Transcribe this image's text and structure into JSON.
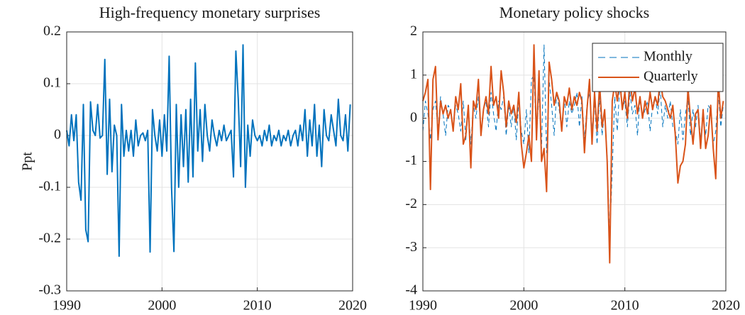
{
  "chart_data": [
    {
      "type": "line",
      "title": "High-frequency monetary surprises",
      "y_label": "Ppt",
      "x": [
        1990,
        1990.25,
        1990.5,
        1990.75,
        1991,
        1991.25,
        1991.5,
        1991.75,
        1992,
        1992.25,
        1992.5,
        1992.75,
        1993,
        1993.25,
        1993.5,
        1993.75,
        1994,
        1994.25,
        1994.5,
        1994.75,
        1995,
        1995.25,
        1995.5,
        1995.75,
        1996,
        1996.25,
        1996.5,
        1996.75,
        1997,
        1997.25,
        1997.5,
        1997.75,
        1998,
        1998.25,
        1998.5,
        1998.75,
        1999,
        1999.25,
        1999.5,
        1999.75,
        2000,
        2000.25,
        2000.5,
        2000.75,
        2001,
        2001.25,
        2001.5,
        2001.75,
        2002,
        2002.25,
        2002.5,
        2002.75,
        2003,
        2003.25,
        2003.5,
        2003.75,
        2004,
        2004.25,
        2004.5,
        2004.75,
        2005,
        2005.25,
        2005.5,
        2005.75,
        2006,
        2006.25,
        2006.5,
        2006.75,
        2007,
        2007.25,
        2007.5,
        2007.75,
        2008,
        2008.25,
        2008.5,
        2008.75,
        2009,
        2009.25,
        2009.5,
        2009.75,
        2010,
        2010.25,
        2010.5,
        2010.75,
        2011,
        2011.25,
        2011.5,
        2011.75,
        2012,
        2012.25,
        2012.5,
        2012.75,
        2013,
        2013.25,
        2013.5,
        2013.75,
        2014,
        2014.25,
        2014.5,
        2014.75,
        2015,
        2015.25,
        2015.5,
        2015.75,
        2016,
        2016.25,
        2016.5,
        2016.75,
        2017,
        2017.25,
        2017.5,
        2017.75,
        2018,
        2018.25,
        2018.5,
        2018.75,
        2019,
        2019.25,
        2019.5,
        2019.75
      ],
      "series": [
        {
          "color": "#0072bd",
          "values": [
            0.01,
            -0.02,
            0.04,
            -0.01,
            0.04,
            -0.09,
            -0.125,
            0.06,
            -0.182,
            -0.205,
            0.065,
            0.01,
            0,
            0.06,
            -0.005,
            0,
            0.147,
            -0.075,
            0.07,
            -0.07,
            0.02,
            0,
            -0.233,
            0.06,
            -0.04,
            0.01,
            -0.03,
            0.01,
            -0.04,
            0.03,
            -0.02,
            0,
            0.005,
            -0.01,
            0.01,
            -0.225,
            0.05,
            0,
            -0.03,
            0.03,
            -0.04,
            0.04,
            -0.03,
            0.153,
            -0.1,
            -0.224,
            0.06,
            -0.1,
            0.04,
            -0.06,
            0.05,
            -0.09,
            0.07,
            -0.08,
            0.14,
            -0.03,
            0.05,
            -0.05,
            0.06,
            0,
            -0.03,
            0.03,
            0,
            -0.02,
            0.01,
            -0.01,
            0.02,
            -0.01,
            0,
            0.01,
            -0.08,
            0.163,
            0.07,
            -0.06,
            0.175,
            -0.1,
            0.02,
            -0.04,
            0.03,
            0,
            -0.01,
            0,
            -0.02,
            0.01,
            -0.01,
            0.02,
            -0.02,
            0,
            -0.01,
            0.01,
            -0.02,
            0,
            -0.01,
            0.01,
            -0.02,
            0,
            0.01,
            -0.02,
            0.02,
            -0.01,
            0.05,
            -0.04,
            0.03,
            -0.02,
            0.06,
            -0.04,
            0.02,
            -0.06,
            0.05,
            0,
            -0.01,
            0.04,
            0.01,
            -0.02,
            0.07,
            0,
            -0.01,
            0.04,
            -0.03,
            0.06
          ]
        }
      ],
      "xlim": [
        1990,
        2020
      ],
      "xticks": [
        1990,
        2000,
        2010,
        2020
      ],
      "ylim": [
        -0.3,
        0.2
      ],
      "yticks": [
        -0.3,
        -0.2,
        -0.1,
        0,
        0.1,
        0.2
      ],
      "grid": true
    },
    {
      "type": "line",
      "title": "Monetary policy shocks",
      "x": [
        1990,
        1990.25,
        1990.5,
        1990.75,
        1991,
        1991.25,
        1991.5,
        1991.75,
        1992,
        1992.25,
        1992.5,
        1992.75,
        1993,
        1993.25,
        1993.5,
        1993.75,
        1994,
        1994.25,
        1994.5,
        1994.75,
        1995,
        1995.25,
        1995.5,
        1995.75,
        1996,
        1996.25,
        1996.5,
        1996.75,
        1997,
        1997.25,
        1997.5,
        1997.75,
        1998,
        1998.25,
        1998.5,
        1998.75,
        1999,
        1999.25,
        1999.5,
        1999.75,
        2000,
        2000.25,
        2000.5,
        2000.75,
        2001,
        2001.25,
        2001.5,
        2001.75,
        2002,
        2002.25,
        2002.5,
        2002.75,
        2003,
        2003.25,
        2003.5,
        2003.75,
        2004,
        2004.25,
        2004.5,
        2004.75,
        2005,
        2005.25,
        2005.5,
        2005.75,
        2006,
        2006.25,
        2006.5,
        2006.75,
        2007,
        2007.25,
        2007.5,
        2007.75,
        2008,
        2008.25,
        2008.5,
        2008.75,
        2009,
        2009.25,
        2009.5,
        2009.75,
        2010,
        2010.25,
        2010.5,
        2010.75,
        2011,
        2011.25,
        2011.5,
        2011.75,
        2012,
        2012.25,
        2012.5,
        2012.75,
        2013,
        2013.25,
        2013.5,
        2013.75,
        2014,
        2014.25,
        2014.5,
        2014.75,
        2015,
        2015.25,
        2015.5,
        2015.75,
        2016,
        2016.25,
        2016.5,
        2016.75,
        2017,
        2017.25,
        2017.5,
        2017.75,
        2018,
        2018.25,
        2018.5,
        2018.75,
        2019,
        2019.25,
        2019.5,
        2019.75
      ],
      "series": [
        {
          "name": "Monthly",
          "color": "#0072bd",
          "line_style": "dashed",
          "values": [
            -0.3,
            0.4,
            0.1,
            -0.5,
            0.2,
            0.4,
            -0.3,
            0.5,
            0.1,
            -0.4,
            0.3,
            0.2,
            -0.2,
            0.3,
            0.1,
            -0.3,
            0.4,
            -0.5,
            0.2,
            -0.6,
            0.3,
            0,
            0.5,
            -0.3,
            0.2,
            0.4,
            -0.2,
            0.6,
            0.1,
            -0.3,
            0.4,
            0.2,
            0.5,
            -0.4,
            0.3,
            -0.2,
            0.3,
            -0.5,
            0.4,
            -0.3,
            -0.6,
            0.2,
            -0.8,
            0.9,
            1,
            -0.5,
            0.6,
            -0.7,
            1.7,
            -0.8,
            0.9,
            0.3,
            -0.4,
            0.6,
            0.2,
            -0.3,
            0.5,
            -0.2,
            0.4,
            0.1,
            0.3,
            0.6,
            -0.2,
            0.5,
            -0.5,
            0.3,
            0.6,
            -0.3,
            0.4,
            -0.6,
            0.5,
            -0.4,
            0.2,
            -0.9,
            -2.8,
            -1.2,
            0.5,
            -0.3,
            0.8,
            0.2,
            0.4,
            -0.2,
            0.6,
            0.1,
            0.3,
            -0.4,
            0.5,
            0,
            0.2,
            0.4,
            -0.3,
            0.3,
            0.5,
            0.1,
            0.7,
            -0.2,
            0.3,
            0,
            0.4,
            -0.2,
            -0.3,
            -0.6,
            0.2,
            -0.5,
            0.1,
            0.5,
            -0.4,
            0.2,
            -0.2,
            0.3,
            -0.5,
            0.1,
            -0.4,
            0.3,
            0.2,
            -0.6,
            -0.3,
            0.6,
            -0.2,
            0.3
          ]
        },
        {
          "name": "Quarterly",
          "color": "#d95319",
          "line_style": "solid",
          "values": [
            0.4,
            0.6,
            0.9,
            -1.65,
            0.9,
            1.2,
            -0.5,
            0.4,
            0.1,
            0.3,
            0,
            0.2,
            -0.3,
            0.5,
            0.2,
            0.8,
            -0.6,
            -0.4,
            0.3,
            -1.15,
            0.4,
            0.2,
            0.9,
            -0.4,
            0.2,
            0.5,
            0.1,
            1.2,
            0.3,
            0.5,
            0,
            1.1,
            0.6,
            -0.2,
            0.4,
            0.1,
            0.3,
            -0.1,
            0.6,
            -0.6,
            -1.15,
            -0.8,
            -0.4,
            -1,
            1.7,
            -0.5,
            1.1,
            -1,
            -0.7,
            -1.7,
            1.3,
            0.9,
            0.3,
            0.6,
            0.4,
            -0.3,
            0.5,
            0.3,
            0.7,
            0.2,
            0.5,
            0.3,
            0.6,
            0.4,
            -0.8,
            0.2,
            0.9,
            -0.6,
            0.6,
            -0.3,
            0.8,
            -0.2,
            0.2,
            -1,
            -3.35,
            0.4,
            0.8,
            0.4,
            0.9,
            0.2,
            0.6,
            0,
            0.9,
            0.4,
            0.7,
            0.1,
            0.5,
            0,
            0.4,
            0.1,
            0.6,
            0.2,
            0.5,
            0.3,
            0.9,
            0.5,
            0.4,
            0.2,
            0,
            0.3,
            -0.4,
            -1.5,
            -1.1,
            -1,
            -0.6,
            0.7,
            0,
            -0.6,
            0.1,
            0.2,
            -0.7,
            0.2,
            -0.7,
            -0.4,
            0.3,
            -0.7,
            -1.4,
            0.9,
            0,
            0.4
          ]
        }
      ],
      "xlim": [
        1990,
        2020
      ],
      "xticks": [
        1990,
        2000,
        2010,
        2020
      ],
      "ylim": [
        -4,
        2
      ],
      "yticks": [
        -4,
        -3,
        -2,
        -1,
        0,
        1,
        2
      ],
      "grid": true,
      "legend": "northeast"
    }
  ]
}
